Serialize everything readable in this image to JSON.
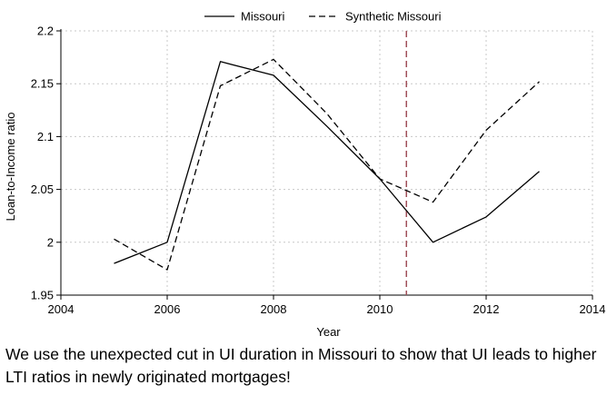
{
  "chart_data": {
    "type": "line",
    "xlabel": "Year",
    "ylabel": "Loan-to-Income ratio",
    "xlim": [
      2004,
      2014
    ],
    "ylim": [
      1.95,
      2.2
    ],
    "xticks": [
      2004,
      2006,
      2008,
      2010,
      2012,
      2014
    ],
    "yticks": [
      1.95,
      2,
      2.05,
      2.1,
      2.15,
      2.2
    ],
    "ytick_labels": [
      "1.95",
      "2",
      "2.05",
      "2.1",
      "2.15",
      "2.2"
    ],
    "grid": true,
    "legend_position": "top-center",
    "treatment_line": {
      "x": 2010.5,
      "color": "#a0505a",
      "style": "dashed"
    },
    "x": [
      2005,
      2006,
      2007,
      2008,
      2009,
      2010,
      2011,
      2012,
      2013
    ],
    "series": [
      {
        "name": "Missouri",
        "style": "solid",
        "color": "#000000",
        "values": [
          1.98,
          2.0,
          2.171,
          2.158,
          2.11,
          2.06,
          2.0,
          2.024,
          2.067
        ]
      },
      {
        "name": "Synthetic Missouri",
        "style": "dashed",
        "color": "#000000",
        "values": [
          2.003,
          1.974,
          2.148,
          2.173,
          2.122,
          2.06,
          2.038,
          2.106,
          2.152
        ]
      }
    ]
  },
  "caption": "We use the unexpected cut in UI duration in Missouri to show that UI leads to higher LTI ratios in newly originated mortgages!"
}
